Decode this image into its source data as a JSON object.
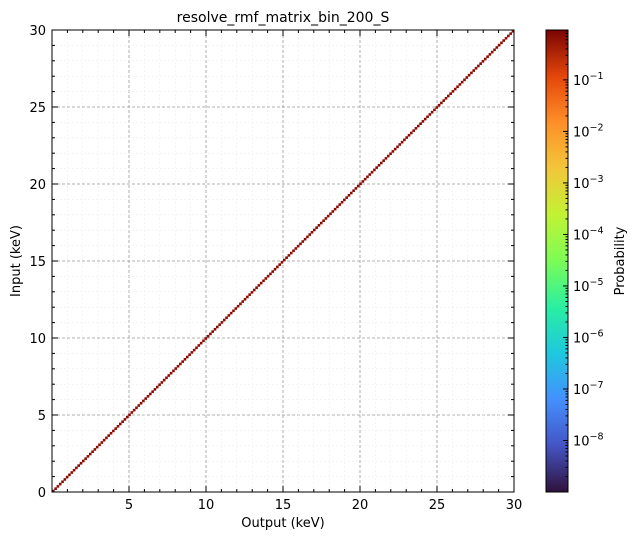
{
  "chart_data": {
    "type": "heatmap",
    "title": "resolve_rmf_matrix_bin_200_S",
    "xlabel": "Output (keV)",
    "ylabel": "Input (keV)",
    "xlim": [
      0,
      30
    ],
    "ylim": [
      0,
      30
    ],
    "xticks": [
      5,
      10,
      15,
      20,
      25,
      30
    ],
    "yticks": [
      0,
      5,
      10,
      15,
      20,
      25,
      30
    ],
    "grid": true,
    "colormap": "turbo",
    "colorbar": {
      "label": "Probability",
      "scale": "log",
      "range": [
        1e-09,
        0.93
      ],
      "ticks": [
        {
          "value": 0.1,
          "base": "10",
          "exp": "−1"
        },
        {
          "value": 0.01,
          "base": "10",
          "exp": "−2"
        },
        {
          "value": 0.001,
          "base": "10",
          "exp": "−3"
        },
        {
          "value": 0.0001,
          "base": "10",
          "exp": "−4"
        },
        {
          "value": 1e-05,
          "base": "10",
          "exp": "−5"
        },
        {
          "value": 1e-06,
          "base": "10",
          "exp": "−6"
        },
        {
          "value": 1e-07,
          "base": "10",
          "exp": "−7"
        },
        {
          "value": 1e-08,
          "base": "10",
          "exp": "−8"
        }
      ]
    },
    "structure": "diagonal",
    "diagonal_probability": 0.9
  }
}
